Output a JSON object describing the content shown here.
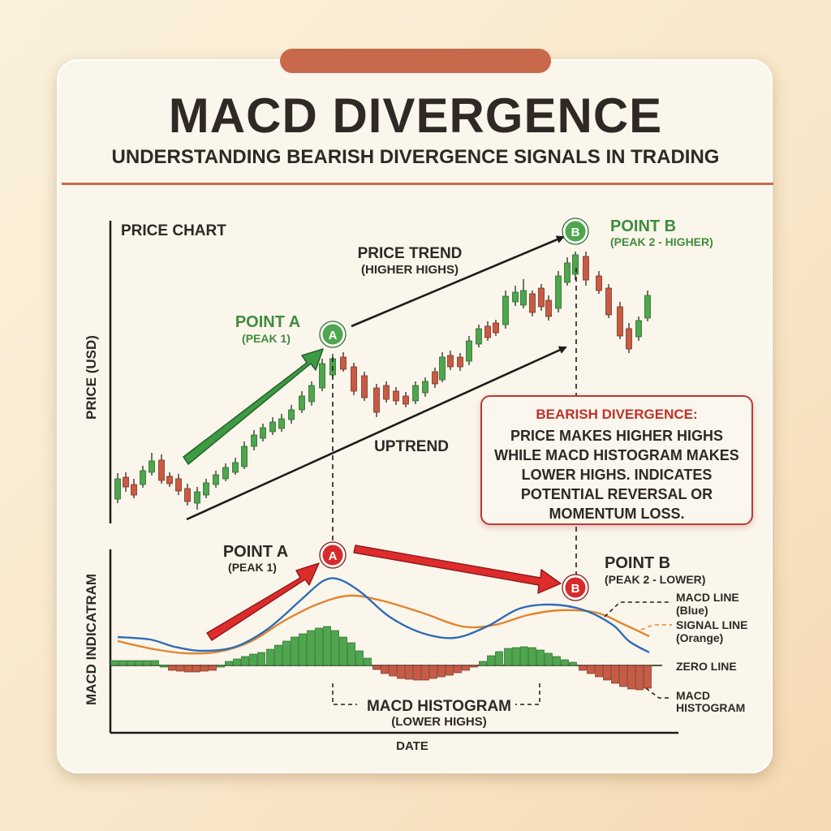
{
  "header": {
    "title": "MACD DIVERGENCE",
    "subtitle": "UNDERSTANDING BEARISH DIVERGENCE SIGNALS IN TRADING"
  },
  "price_panel": {
    "title": "PRICE CHART",
    "y_label": "PRICE (USD)",
    "trend_label_line1": "PRICE TREND",
    "trend_label_line2": "(HIGHER HIGHS)",
    "uptrend_label": "UPTREND",
    "point_a": {
      "marker": "A",
      "label": "POINT A",
      "sub": "(PEAK 1)"
    },
    "point_b": {
      "marker": "B",
      "label": "POINT B",
      "sub": "(PEAK 2 - HIGHER)"
    }
  },
  "macd_panel": {
    "y_label": "MACD INDICATRAM",
    "x_label": "DATE",
    "histogram_label_line1": "MACD HISTOGRAM",
    "histogram_label_line2": "(LOWER HIGHS)",
    "point_a": {
      "marker": "A",
      "label": "POINT A",
      "sub": "(PEAK 1)"
    },
    "point_b": {
      "marker": "B",
      "label": "POINT B",
      "sub": "(PEAK 2 - LOWER)"
    },
    "legend": {
      "macd_line_1": "MACD LINE",
      "macd_line_2": "(Blue)",
      "signal_line_1": "SIGNAL LINE",
      "signal_line_2": "(Orange)",
      "zero_line": "ZERO LINE",
      "histogram_1": "MACD",
      "histogram_2": "HISTOGRAM"
    }
  },
  "callout": {
    "title": "BEARISH DIVERGENCE:",
    "body": "PRICE MAKES HIGHER HIGHS\nWHILE MACD HISTOGRAM MAKES\nLOWER HIGHS. INDICATES\nPOTENTIAL REVERSAL OR\nMOMENTUM LOSS."
  },
  "colors": {
    "accent": "#c8694c",
    "bull": "#4ea64d",
    "bear": "#c75b43",
    "macd_line": "#2f6db5",
    "signal_line": "#e2852d",
    "point_a_price": "#3f9a45",
    "point_red": "#d82a2a",
    "text": "#2f2824"
  }
}
